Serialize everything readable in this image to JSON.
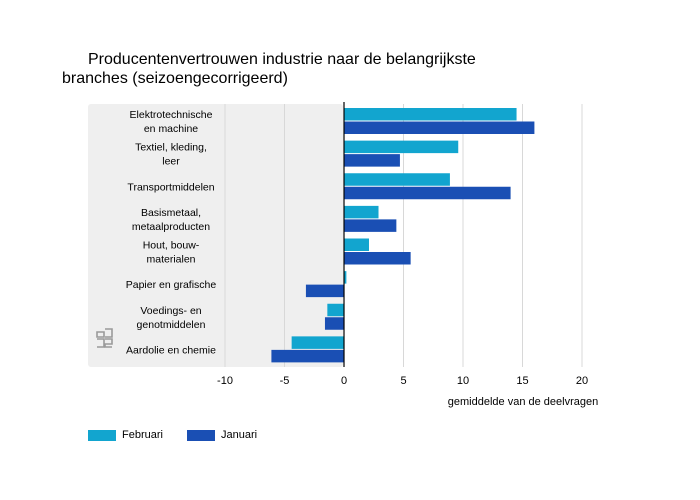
{
  "title": {
    "line1": "Producentenvertrouwen industrie naar de belangrijkste",
    "line2": "branches (seizoengecorrigeerd)"
  },
  "colors": {
    "series_februari": "#12a5cf",
    "series_januari": "#1a4fb4",
    "category_panel": "#efefef",
    "gridline": "#d8d8d8",
    "zero_line": "#000000",
    "logo": "#9a9a9a"
  },
  "logo_icon": "cbs-logo-icon",
  "chart_data": {
    "type": "bar",
    "orientation": "horizontal",
    "title": "Producentenvertrouwen industrie naar de belangrijkste branches (seizoengecorrigeerd)",
    "xlabel": "gemiddelde van de deelvragen",
    "ylabel": "",
    "xlim": [
      -10,
      20
    ],
    "xticks": [
      -10,
      -5,
      0,
      5,
      10,
      15,
      20
    ],
    "grid": true,
    "legend_position": "bottom-left",
    "categories": [
      [
        "Elektrotechnische",
        "en machine"
      ],
      [
        "Textiel, kleding,",
        "leer"
      ],
      [
        "Transportmiddelen"
      ],
      [
        "Basismetaal,",
        "metaalproducten"
      ],
      [
        "Hout, bouw-",
        "materialen"
      ],
      [
        "Papier en grafische"
      ],
      [
        "Voedings- en",
        "genotmiddelen"
      ],
      [
        "Aardolie en chemie"
      ]
    ],
    "series": [
      {
        "name": "Februari",
        "values": [
          14.5,
          9.6,
          8.9,
          2.9,
          2.1,
          0.2,
          -1.4,
          -4.4
        ]
      },
      {
        "name": "Januari",
        "values": [
          16.0,
          4.7,
          14.0,
          4.4,
          5.6,
          -3.2,
          -1.6,
          -6.1
        ]
      }
    ]
  }
}
